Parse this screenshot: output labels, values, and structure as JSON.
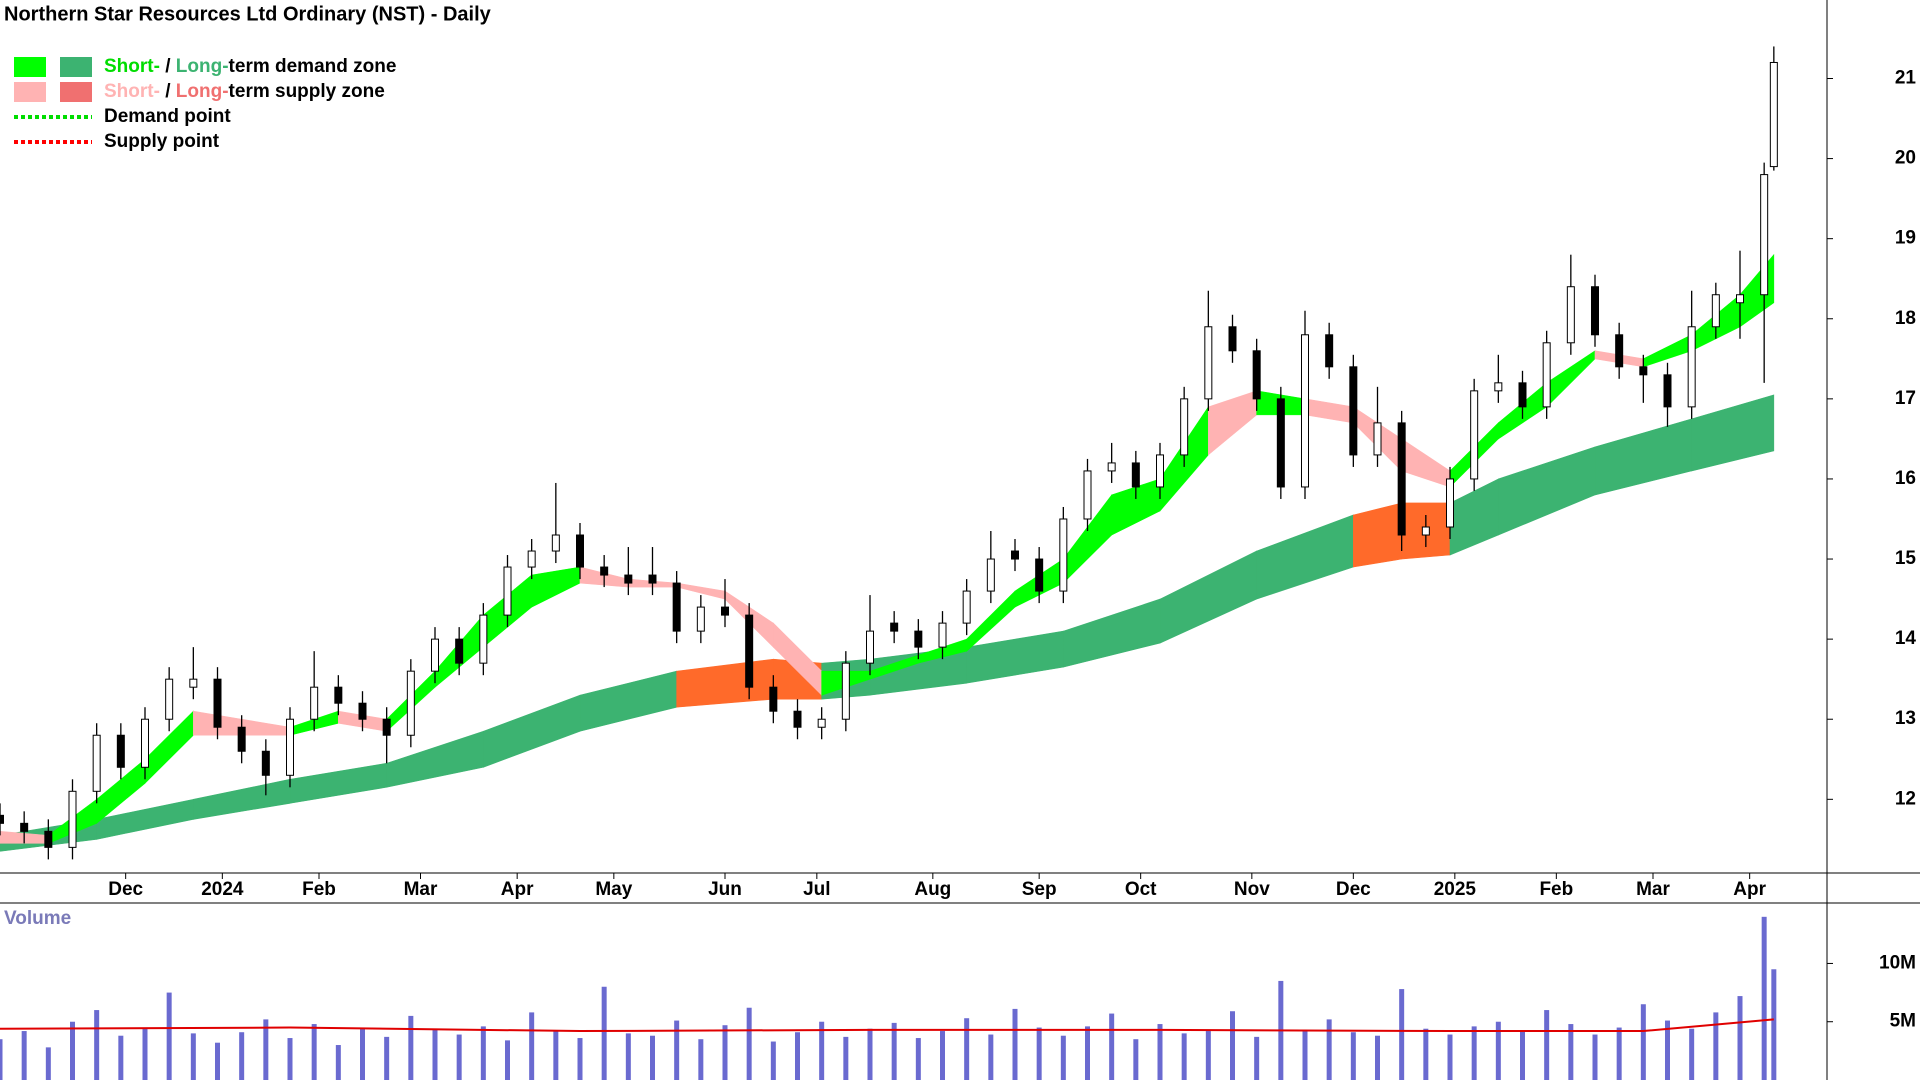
{
  "chart_data": {
    "type": "candlestick",
    "title": "Northern Star Resources Ltd Ordinary (NST) - Daily",
    "x": [
      0,
      5,
      10,
      15,
      20,
      25,
      30,
      35,
      40,
      45,
      50,
      55,
      60,
      65,
      70,
      75,
      80,
      85,
      90,
      95,
      100,
      105,
      110,
      115,
      120,
      125,
      130,
      135,
      140,
      145,
      150,
      155,
      160,
      165,
      170,
      175,
      180,
      185,
      190,
      195,
      200,
      205,
      210,
      215,
      220,
      225,
      230,
      235,
      240,
      245,
      250,
      255,
      260,
      265,
      270,
      275,
      280,
      285,
      290,
      295,
      300,
      305,
      310,
      315,
      320,
      325,
      330,
      335,
      340,
      345,
      350,
      355,
      360,
      365,
      367
    ],
    "open": [
      11.8,
      11.7,
      11.6,
      11.4,
      12.1,
      12.8,
      12.4,
      13.0,
      13.4,
      13.5,
      12.9,
      12.6,
      12.3,
      13.0,
      13.4,
      13.2,
      13.0,
      12.8,
      13.6,
      14.0,
      13.7,
      14.3,
      14.9,
      15.1,
      15.3,
      14.9,
      14.8,
      14.8,
      14.7,
      14.1,
      14.4,
      14.3,
      13.4,
      13.1,
      12.9,
      13.0,
      13.7,
      14.2,
      14.1,
      13.9,
      14.2,
      14.6,
      15.1,
      15.0,
      14.6,
      15.5,
      16.1,
      16.2,
      15.9,
      16.3,
      17.0,
      17.9,
      17.6,
      17.0,
      15.9,
      17.8,
      17.4,
      16.3,
      16.7,
      15.3,
      15.4,
      16.0,
      17.1,
      17.2,
      16.9,
      17.7,
      18.4,
      17.8,
      17.4,
      17.3,
      16.9,
      17.9,
      18.2,
      18.3,
      19.9
    ],
    "high": [
      11.95,
      11.85,
      11.75,
      12.25,
      12.95,
      12.95,
      13.15,
      13.65,
      13.9,
      13.65,
      13.05,
      12.75,
      13.15,
      13.85,
      13.55,
      13.35,
      13.15,
      13.75,
      14.15,
      14.15,
      14.45,
      15.05,
      15.25,
      15.95,
      15.45,
      15.05,
      15.15,
      15.15,
      14.85,
      14.55,
      14.75,
      14.45,
      13.55,
      13.25,
      13.15,
      13.85,
      14.55,
      14.35,
      14.25,
      14.35,
      14.75,
      15.35,
      15.25,
      15.15,
      15.65,
      16.25,
      16.45,
      16.35,
      16.45,
      17.15,
      18.35,
      18.05,
      17.75,
      17.15,
      18.1,
      17.95,
      17.55,
      17.15,
      16.85,
      15.55,
      16.15,
      17.25,
      17.55,
      17.35,
      17.85,
      18.8,
      18.55,
      17.95,
      17.55,
      17.45,
      18.35,
      18.45,
      18.85,
      19.95,
      21.4
    ],
    "low": [
      11.55,
      11.45,
      11.25,
      11.25,
      11.95,
      12.25,
      12.25,
      12.85,
      13.25,
      12.75,
      12.45,
      12.05,
      12.15,
      12.85,
      13.05,
      12.85,
      12.45,
      12.65,
      13.45,
      13.55,
      13.55,
      14.15,
      14.75,
      14.95,
      14.75,
      14.65,
      14.55,
      14.55,
      13.95,
      13.95,
      14.15,
      13.25,
      12.95,
      12.75,
      12.75,
      12.85,
      13.55,
      13.95,
      13.75,
      13.75,
      14.05,
      14.45,
      14.85,
      14.45,
      14.45,
      15.35,
      15.95,
      15.75,
      15.75,
      16.15,
      16.85,
      17.45,
      16.85,
      15.75,
      15.75,
      17.25,
      16.15,
      16.15,
      15.1,
      15.15,
      15.25,
      15.85,
      16.95,
      16.75,
      16.75,
      17.55,
      17.65,
      17.25,
      16.95,
      16.65,
      16.75,
      17.75,
      17.75,
      17.2,
      19.85
    ],
    "close": [
      11.7,
      11.6,
      11.4,
      12.1,
      12.8,
      12.4,
      13.0,
      13.5,
      13.5,
      12.9,
      12.6,
      12.3,
      13.0,
      13.4,
      13.2,
      13.0,
      12.8,
      13.6,
      14.0,
      13.7,
      14.3,
      14.9,
      15.1,
      15.3,
      14.9,
      14.8,
      14.7,
      14.7,
      14.1,
      14.4,
      14.3,
      13.4,
      13.1,
      12.9,
      13.0,
      13.7,
      14.1,
      14.1,
      13.9,
      14.2,
      14.6,
      15.0,
      15.0,
      14.6,
      15.5,
      16.1,
      16.2,
      15.9,
      16.3,
      17.0,
      17.9,
      17.6,
      17.0,
      15.9,
      17.8,
      17.4,
      16.3,
      16.7,
      15.3,
      15.4,
      16.0,
      17.1,
      17.2,
      16.9,
      17.7,
      18.4,
      17.8,
      17.4,
      17.3,
      16.9,
      17.9,
      18.3,
      18.3,
      19.8,
      21.2
    ],
    "candle_colors": {
      "up": "#ffffff",
      "down": "#000000",
      "outline": "#000000"
    },
    "xlim": [
      0,
      378
    ],
    "xticks": [
      {
        "value": 26,
        "label": "Dec"
      },
      {
        "value": 46,
        "label": "2024"
      },
      {
        "value": 66,
        "label": "Feb"
      },
      {
        "value": 87,
        "label": "Mar"
      },
      {
        "value": 107,
        "label": "Apr"
      },
      {
        "value": 127,
        "label": "May"
      },
      {
        "value": 150,
        "label": "Jun"
      },
      {
        "value": 169,
        "label": "Jul"
      },
      {
        "value": 193,
        "label": "Aug"
      },
      {
        "value": 215,
        "label": "Sep"
      },
      {
        "value": 236,
        "label": "Oct"
      },
      {
        "value": 259,
        "label": "Nov"
      },
      {
        "value": 280,
        "label": "Dec"
      },
      {
        "value": 301,
        "label": "2025"
      },
      {
        "value": 322,
        "label": "Feb"
      },
      {
        "value": 342,
        "label": "Mar"
      },
      {
        "value": 362,
        "label": "Apr"
      }
    ],
    "ylim": [
      11.08,
      21.98
    ],
    "yticks": [
      12,
      13,
      14,
      15,
      16,
      17,
      18,
      19,
      20,
      21
    ],
    "zones": {
      "colors": {
        "short": {
          "demand": "#00ff00",
          "supply": "#ffb3b3"
        },
        "long": {
          "demand": "#3cb371",
          "supply": "#ff6a2a"
        }
      },
      "short": {
        "x": [
          0,
          10,
          20,
          30,
          40,
          50,
          60,
          70,
          80,
          90,
          100,
          110,
          120,
          130,
          140,
          150,
          160,
          170,
          180,
          190,
          200,
          210,
          220,
          230,
          240,
          250,
          260,
          270,
          280,
          290,
          300,
          310,
          320,
          330,
          340,
          350,
          360,
          367
        ],
        "upper": [
          11.6,
          11.55,
          12.0,
          12.5,
          13.1,
          13.0,
          12.9,
          13.1,
          13.0,
          13.6,
          14.3,
          14.8,
          14.9,
          14.75,
          14.7,
          14.6,
          14.2,
          13.6,
          13.6,
          13.8,
          14.0,
          14.6,
          15.0,
          15.8,
          16.0,
          16.9,
          17.1,
          17.0,
          16.9,
          16.5,
          16.1,
          16.7,
          17.2,
          17.6,
          17.5,
          17.8,
          18.3,
          18.8
        ],
        "lower": [
          11.45,
          11.45,
          11.7,
          12.2,
          12.8,
          12.8,
          12.8,
          12.95,
          12.85,
          13.4,
          13.9,
          14.4,
          14.7,
          14.65,
          14.65,
          14.5,
          13.9,
          13.3,
          13.5,
          13.7,
          13.85,
          14.4,
          14.7,
          15.3,
          15.6,
          16.3,
          16.8,
          16.8,
          16.7,
          16.1,
          15.9,
          16.5,
          16.9,
          17.5,
          17.4,
          17.6,
          17.9,
          18.2
        ],
        "states": [
          "demand",
          "supply",
          "demand",
          "demand",
          "demand",
          "supply",
          "supply",
          "demand",
          "supply",
          "demand",
          "demand",
          "demand",
          "demand",
          "supply",
          "supply",
          "supply",
          "supply",
          "supply",
          "demand",
          "demand",
          "demand",
          "demand",
          "demand",
          "demand",
          "demand",
          "demand",
          "supply",
          "demand",
          "supply",
          "supply",
          "supply",
          "demand",
          "demand",
          "demand",
          "supply",
          "demand",
          "demand",
          "demand"
        ]
      },
      "long": {
        "x": [
          0,
          20,
          40,
          60,
          80,
          100,
          120,
          140,
          160,
          170,
          180,
          200,
          220,
          240,
          260,
          280,
          290,
          300,
          310,
          330,
          350,
          367
        ],
        "upper": [
          11.55,
          11.75,
          12.0,
          12.25,
          12.45,
          12.85,
          13.3,
          13.6,
          13.75,
          13.7,
          13.75,
          13.9,
          14.1,
          14.5,
          15.1,
          15.55,
          15.7,
          15.7,
          16.0,
          16.4,
          16.75,
          17.05
        ],
        "lower": [
          11.35,
          11.5,
          11.75,
          11.95,
          12.15,
          12.4,
          12.85,
          13.15,
          13.25,
          13.25,
          13.3,
          13.45,
          13.65,
          13.95,
          14.5,
          14.9,
          15.0,
          15.05,
          15.3,
          15.8,
          16.1,
          16.35
        ],
        "states": [
          "demand",
          "demand",
          "demand",
          "demand",
          "demand",
          "demand",
          "demand",
          "demand",
          "supply",
          "supply",
          "demand",
          "demand",
          "demand",
          "demand",
          "demand",
          "demand",
          "supply",
          "supply",
          "demand",
          "demand",
          "demand",
          "demand"
        ]
      }
    },
    "legend": {
      "items": [
        {
          "parts": [
            "Short-",
            " / ",
            "Long-",
            "term demand zone"
          ],
          "part_colors": [
            "#00dd00",
            "#000000",
            "#3cb371",
            "#000000"
          ],
          "swatches": [
            "#00ff00",
            "#3cb371"
          ]
        },
        {
          "parts": [
            "Short-",
            " / ",
            "Long-",
            "term supply zone"
          ],
          "part_colors": [
            "#ffb3b3",
            "#000000",
            "#f07070",
            "#000000"
          ],
          "swatches": [
            "#ffb3b3",
            "#f07070"
          ]
        },
        {
          "parts": [
            "Demand point"
          ],
          "part_colors": [
            "#000000"
          ],
          "line": "#00dd00"
        },
        {
          "parts": [
            "Supply point"
          ],
          "part_colors": [
            "#000000"
          ],
          "line": "#ff0000"
        }
      ]
    },
    "volume": {
      "label": "Volume",
      "color": "#6a6ad0",
      "values": [
        3500000.0,
        4200000.0,
        2800000.0,
        5000000.0,
        6000000.0,
        3800000.0,
        4500000.0,
        7500000.0,
        4000000.0,
        3200000.0,
        4100000.0,
        5200000.0,
        3600000.0,
        4800000.0,
        3000000.0,
        4400000.0,
        3700000.0,
        5500000.0,
        4300000.0,
        3900000.0,
        4600000.0,
        3400000.0,
        5800000.0,
        4200000.0,
        3600000.0,
        8000000.0,
        4000000.0,
        3800000.0,
        5100000.0,
        3500000.0,
        4700000.0,
        6200000.0,
        3300000.0,
        4100000.0,
        5000000.0,
        3700000.0,
        4400000.0,
        4900000.0,
        3600000.0,
        4200000.0,
        5300000.0,
        3900000.0,
        6100000.0,
        4500000.0,
        3800000.0,
        4600000.0,
        5700000.0,
        3500000.0,
        4800000.0,
        4000000.0,
        4200000.0,
        5900000.0,
        3700000.0,
        8500000.0,
        4300000.0,
        5200000.0,
        4100000.0,
        3800000.0,
        7800000.0,
        4400000.0,
        3900000.0,
        4600000.0,
        5000000.0,
        4200000.0,
        6000000.0,
        4800000.0,
        3900000.0,
        4500000.0,
        6500000.0,
        5100000.0,
        4400000.0,
        5800000.0,
        7200000.0,
        14000000.0,
        9500000.0
      ],
      "average": {
        "color": "#e00000",
        "x": [
          0,
          60,
          120,
          180,
          240,
          300,
          340,
          367
        ],
        "values": [
          4400000.0,
          4500000.0,
          4200000.0,
          4300000.0,
          4300000.0,
          4200000.0,
          4200000.0,
          5200000.0
        ]
      },
      "ylim": [
        0,
        15100000
      ],
      "yticks": [
        {
          "value": 5000000,
          "label": "5M"
        },
        {
          "value": 10000000,
          "label": "10M"
        }
      ]
    }
  }
}
